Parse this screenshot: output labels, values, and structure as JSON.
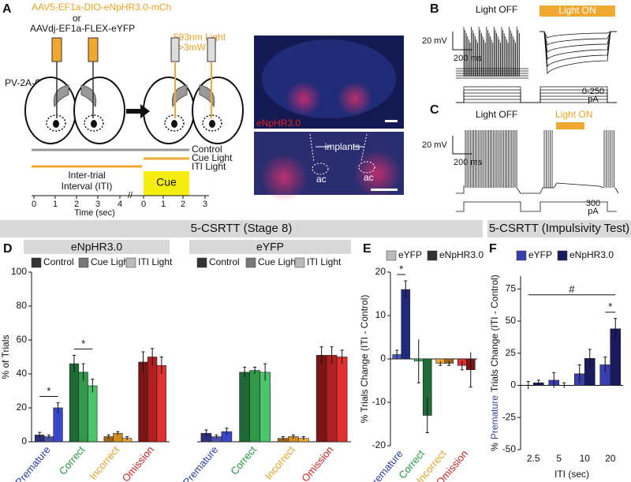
{
  "panel_labels": [
    "A",
    "B",
    "C",
    "D",
    "E",
    "F"
  ],
  "panel_a": {
    "virus1": "AAV5-EF1a-DIO-eNpHR3.0-mCh",
    "or": "or",
    "virus2": "AAVdj-EF1a-FLEX-eYFP",
    "mouse": "PV-2A-Cre",
    "light1": "593nm Light",
    "light2": ">3mW",
    "image_label": "eNpHR3.0",
    "implants": "implants",
    "ac": "ac",
    "conditions": [
      "Control",
      "Cue Light",
      "ITI Light"
    ],
    "iti_label": [
      "Inter-trial",
      "Interval (ITI)"
    ],
    "cue": "Cue",
    "time_label": "Time (sec)",
    "time_ticks": [
      0,
      1,
      2,
      3,
      4,
      0,
      1,
      2,
      3
    ]
  },
  "panel_b": {
    "off": "Light OFF",
    "on": "Light ON",
    "scale_v": "20 mV",
    "scale_t": "200 ms",
    "current": "0-250",
    "current_unit": "pA"
  },
  "panel_c": {
    "off": "Light OFF",
    "on": "Light ON",
    "scale_v": "20 mV",
    "scale_t": "200 ms",
    "current": "300",
    "current_unit": "pA"
  },
  "section_headers": [
    "5-CSRTT (Stage 8)",
    "5-CSRTT (Impulsivity Test)"
  ],
  "chart_data": [
    {
      "type": "bar",
      "title": "eNpHR3.0",
      "y_label": "% of Trials",
      "categories": [
        "Premature",
        "Correct",
        "Incorrect",
        "Omission"
      ],
      "category_label_colors": [
        "#2b3ab0",
        "#1f9a3a",
        "#e8a020",
        "#d02020"
      ],
      "category_colors": [
        [
          "#2b2f78",
          "#4a4fa8",
          "#3a46c8"
        ],
        [
          "#1f6b35",
          "#2f9a4a",
          "#4cc46a"
        ],
        [
          "#a0641a",
          "#d08a20",
          "#f0a830"
        ],
        [
          "#7a1515",
          "#b02020",
          "#e03030"
        ]
      ],
      "series": [
        {
          "name": "Control",
          "color": "#333333",
          "values": [
            4,
            46,
            3,
            47
          ],
          "errors": [
            1.5,
            5,
            1,
            6
          ]
        },
        {
          "name": "Cue Light",
          "color": "#777777",
          "values": [
            3,
            41,
            5,
            50
          ],
          "errors": [
            1,
            5,
            1,
            5
          ]
        },
        {
          "name": "ITI Light",
          "color": "#bbbbbb",
          "values": [
            20,
            33,
            2,
            45
          ],
          "errors": [
            3,
            4,
            1,
            5
          ]
        }
      ],
      "ylim": [
        0,
        100
      ],
      "yticks": [
        0,
        20,
        40,
        60,
        80,
        100
      ],
      "annotations": [
        "*",
        "*"
      ]
    },
    {
      "type": "bar",
      "title": "eYFP",
      "categories": [
        "Premature",
        "Correct",
        "Incorrect",
        "Omission"
      ],
      "category_label_colors": [
        "#2b3ab0",
        "#1f9a3a",
        "#e8a020",
        "#d02020"
      ],
      "category_colors": [
        [
          "#2b2f78",
          "#4a4fa8",
          "#3a46c8"
        ],
        [
          "#1f6b35",
          "#2f9a4a",
          "#4cc46a"
        ],
        [
          "#a0641a",
          "#d08a20",
          "#f0a830"
        ],
        [
          "#7a1515",
          "#b02020",
          "#e03030"
        ]
      ],
      "series": [
        {
          "name": "Control",
          "color": "#333333",
          "values": [
            5,
            41,
            2,
            51
          ],
          "errors": [
            2,
            3,
            1,
            5
          ]
        },
        {
          "name": "Cue Light",
          "color": "#777777",
          "values": [
            3,
            42,
            3,
            51
          ],
          "errors": [
            1,
            2,
            1,
            5
          ]
        },
        {
          "name": "ITI Light",
          "color": "#bbbbbb",
          "values": [
            6,
            41,
            2,
            50
          ],
          "errors": [
            2,
            5,
            1,
            4
          ]
        }
      ],
      "ylim": [
        0,
        100
      ]
    },
    {
      "type": "bar",
      "y_label": "% Trials Change (ITI - Control)",
      "categories": [
        "Premature",
        "Correct",
        "Incorrect",
        "Omission"
      ],
      "category_label_colors": [
        "#2b3ab0",
        "#1f9a3a",
        "#e8a020",
        "#d02020"
      ],
      "category_colors": [
        [
          "#4a5ac0",
          "#1f2a7a"
        ],
        [
          "#4cc46a",
          "#1f6b35"
        ],
        [
          "#f0a830",
          "#a0641a"
        ],
        [
          "#e03030",
          "#7a1515"
        ]
      ],
      "series": [
        {
          "name": "eYFP",
          "color": "#bbbbbb",
          "values": [
            1,
            -0.5,
            -1,
            -1.5
          ],
          "errors": [
            1,
            5,
            0.5,
            1
          ]
        },
        {
          "name": "eNpHR3.0",
          "color": "#333333",
          "values": [
            16,
            -13,
            -1,
            -2.5
          ],
          "errors": [
            2,
            4,
            0.5,
            4
          ]
        }
      ],
      "ylim": [
        -20,
        20
      ],
      "yticks": [
        -20,
        -10,
        0,
        10,
        20
      ],
      "annotations": [
        "*"
      ]
    },
    {
      "type": "bar",
      "y_label_parts": [
        "%",
        "Premature",
        "Trials Change (ITI - Control)"
      ],
      "x_label": "ITI (sec)",
      "categories": [
        "2.5",
        "5",
        "10",
        "20"
      ],
      "series": [
        {
          "name": "eYFP",
          "color": "#3a3fb0",
          "values": [
            0,
            4,
            9,
            16
          ],
          "errors": [
            3,
            6,
            7,
            6
          ]
        },
        {
          "name": "eNpHR3.0",
          "color": "#1a1a5e",
          "values": [
            2,
            0,
            21,
            44
          ],
          "errors": [
            2,
            2,
            7,
            8
          ]
        }
      ],
      "ylim": [
        -50,
        85
      ],
      "yticks": [
        -50,
        -25,
        0,
        25,
        50,
        75
      ],
      "annotations": [
        "#",
        "*"
      ]
    }
  ]
}
